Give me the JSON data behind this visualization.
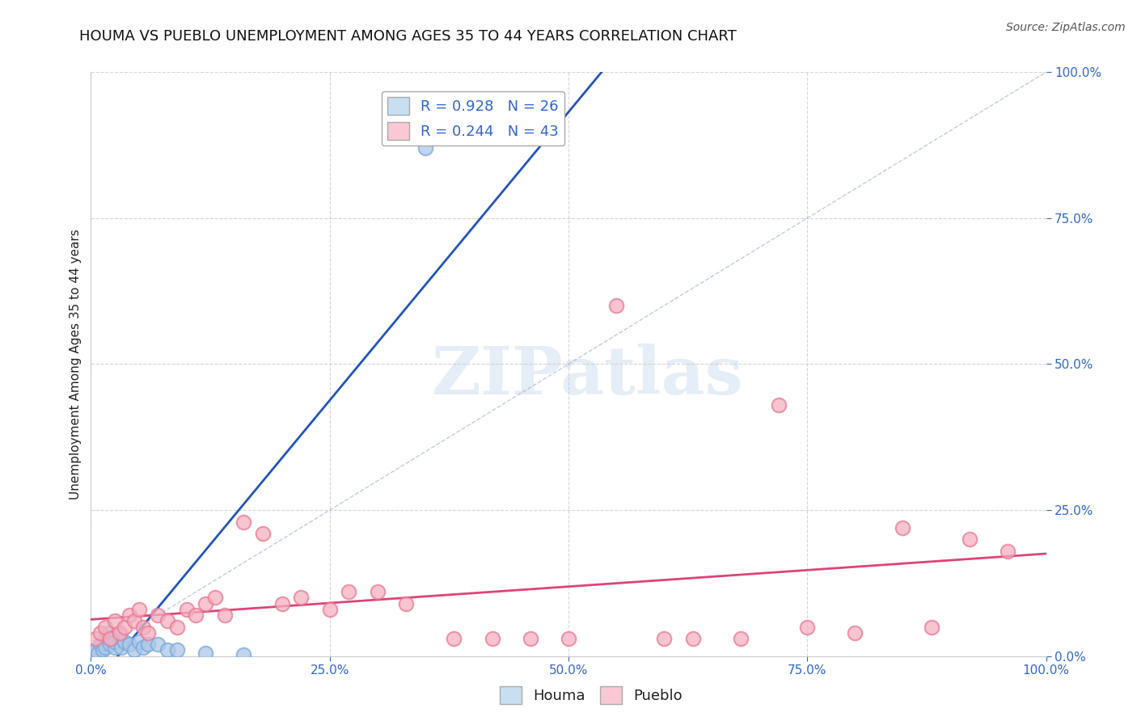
{
  "title": "HOUMA VS PUEBLO UNEMPLOYMENT AMONG AGES 35 TO 44 YEARS CORRELATION CHART",
  "source": "Source: ZipAtlas.com",
  "ylabel": "Unemployment Among Ages 35 to 44 years",
  "x_tick_labels": [
    "0.0%",
    "25.0%",
    "50.0%",
    "75.0%",
    "100.0%"
  ],
  "x_tick_vals": [
    0,
    25,
    50,
    75,
    100
  ],
  "y_tick_labels": [
    "0.0%",
    "25.0%",
    "50.0%",
    "75.0%",
    "100.0%"
  ],
  "y_tick_vals": [
    0,
    25,
    50,
    75,
    100
  ],
  "xlim": [
    0,
    100
  ],
  "ylim": [
    0,
    100
  ],
  "houma_color": "#adc8e8",
  "pueblo_color": "#f5b0c0",
  "houma_edge": "#7aaadb",
  "pueblo_edge": "#e87a96",
  "houma_line_color": "#2255bb",
  "pueblo_line_color": "#dd4477",
  "ref_line_color": "#aaaacc",
  "R_houma": 0.928,
  "N_houma": 26,
  "R_pueblo": 0.244,
  "N_pueblo": 43,
  "houma_x": [
    0.3,
    0.5,
    0.7,
    1.0,
    1.2,
    1.5,
    1.5,
    1.8,
    2.0,
    2.2,
    2.5,
    2.5,
    3.0,
    3.2,
    3.5,
    4.0,
    4.5,
    5.0,
    5.5,
    6.0,
    7.0,
    8.0,
    9.0,
    12.0,
    16.0,
    35.0
  ],
  "houma_y": [
    0.5,
    1.0,
    0.5,
    2.0,
    1.0,
    3.0,
    1.5,
    4.0,
    2.0,
    3.0,
    1.5,
    2.5,
    3.5,
    1.5,
    2.5,
    2.0,
    1.0,
    2.5,
    1.5,
    2.0,
    2.0,
    1.0,
    1.0,
    0.5,
    0.3,
    87.0
  ],
  "pueblo_x": [
    0.5,
    1.0,
    1.5,
    2.0,
    2.5,
    3.0,
    3.5,
    4.0,
    4.5,
    5.0,
    5.5,
    6.0,
    7.0,
    8.0,
    9.0,
    10.0,
    11.0,
    12.0,
    13.0,
    14.0,
    16.0,
    18.0,
    20.0,
    22.0,
    25.0,
    27.0,
    30.0,
    33.0,
    38.0,
    42.0,
    46.0,
    50.0,
    55.0,
    60.0,
    63.0,
    68.0,
    72.0,
    75.0,
    80.0,
    85.0,
    88.0,
    92.0,
    96.0
  ],
  "pueblo_y": [
    3.0,
    4.0,
    5.0,
    3.0,
    6.0,
    4.0,
    5.0,
    7.0,
    6.0,
    8.0,
    5.0,
    4.0,
    7.0,
    6.0,
    5.0,
    8.0,
    7.0,
    9.0,
    10.0,
    7.0,
    23.0,
    21.0,
    9.0,
    10.0,
    8.0,
    11.0,
    11.0,
    9.0,
    3.0,
    3.0,
    3.0,
    3.0,
    60.0,
    3.0,
    3.0,
    3.0,
    43.0,
    5.0,
    4.0,
    22.0,
    5.0,
    20.0,
    18.0
  ],
  "background_color": "#ffffff",
  "legend_color_houma": "#c8dff2",
  "legend_color_pueblo": "#f9c8d4",
  "title_fontsize": 13,
  "axis_label_fontsize": 11,
  "tick_fontsize": 11,
  "legend_fontsize": 13,
  "watermark_text": "ZIPatlas",
  "watermark_fontsize": 60
}
